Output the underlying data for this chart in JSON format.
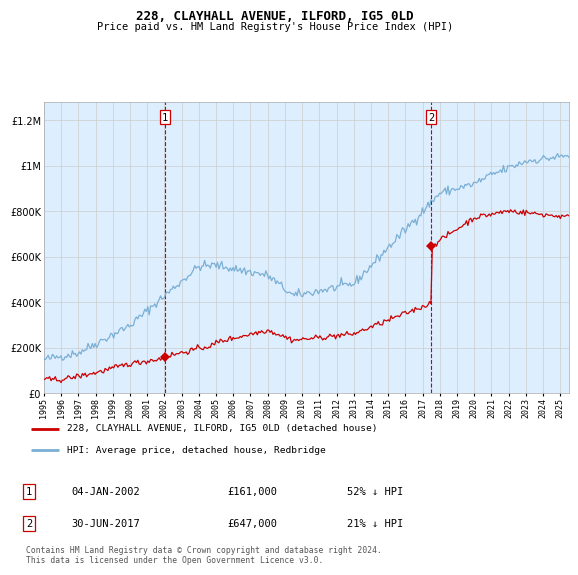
{
  "title": "228, CLAYHALL AVENUE, ILFORD, IG5 0LD",
  "subtitle": "Price paid vs. HM Land Registry's House Price Index (HPI)",
  "legend_line1": "228, CLAYHALL AVENUE, ILFORD, IG5 0LD (detached house)",
  "legend_line2": "HPI: Average price, detached house, Redbridge",
  "sale1_date": "04-JAN-2002",
  "sale1_price": 161000,
  "sale1_pct": "52% ↓ HPI",
  "sale2_date": "30-JUN-2017",
  "sale2_price": 647000,
  "sale2_pct": "21% ↓ HPI",
  "footer": "Contains HM Land Registry data © Crown copyright and database right 2024.\nThis data is licensed under the Open Government Licence v3.0.",
  "red_color": "#cc0000",
  "blue_color": "#7bafd4",
  "bg_color": "#ddeeff",
  "grid_color": "#cccccc",
  "sale1_year": 2002.03,
  "sale2_year": 2017.5,
  "xmin": 1995,
  "xmax": 2025.5,
  "ymin": 0,
  "ymax": 1280000,
  "title_fontsize": 9,
  "subtitle_fontsize": 7.5
}
